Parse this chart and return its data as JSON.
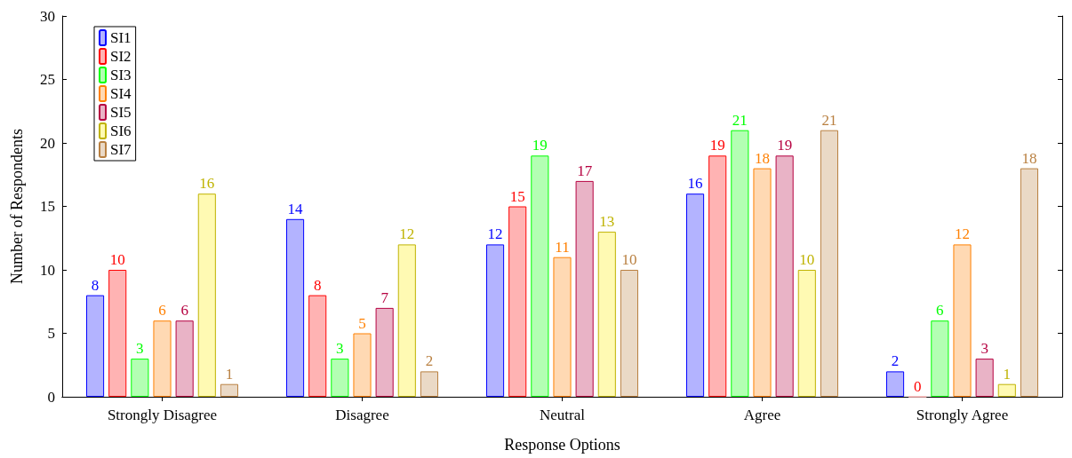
{
  "chart_data": {
    "type": "bar",
    "xlabel": "Response Options",
    "ylabel": "Number of Respondents",
    "categories": [
      "Strongly Disagree",
      "Disagree",
      "Neutral",
      "Agree",
      "Strongly Agree"
    ],
    "series": [
      {
        "name": "SI1",
        "color": "#b3b3ff",
        "values": [
          8,
          14,
          12,
          16,
          2
        ]
      },
      {
        "name": "SI2",
        "color": "#ffb3b3",
        "values": [
          10,
          8,
          15,
          19,
          0
        ]
      },
      {
        "name": "SI3",
        "color": "#b3ffb3",
        "values": [
          3,
          3,
          19,
          21,
          6
        ]
      },
      {
        "name": "SI4",
        "color": "#ffd9b3",
        "values": [
          6,
          5,
          11,
          18,
          12
        ]
      },
      {
        "name": "SI5",
        "color": "#e9b3c6",
        "values": [
          6,
          7,
          17,
          19,
          3
        ]
      },
      {
        "name": "SI6",
        "color": "#fffab3",
        "values": [
          16,
          12,
          13,
          10,
          1
        ]
      },
      {
        "name": "SI7",
        "color": "#ead9c6",
        "values": [
          1,
          2,
          10,
          21,
          18
        ]
      }
    ],
    "ylim": [
      0,
      30
    ],
    "yticks": [
      0,
      5,
      10,
      15,
      20,
      25,
      30
    ],
    "data_labels": true,
    "grid": false,
    "legend": "top left"
  }
}
